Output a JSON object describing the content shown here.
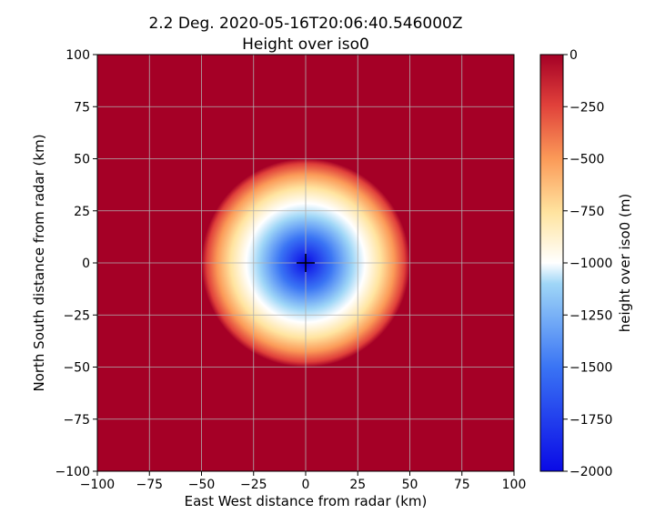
{
  "chart_data": {
    "type": "heatmap",
    "title": "2.2 Deg. 2020-05-16T20:06:40.546000Z",
    "subtitle": "Height over iso0",
    "xlabel": "East West distance from radar (km)",
    "ylabel": "North South distance from radar (km)",
    "xlim": [
      -100,
      100
    ],
    "ylim": [
      -100,
      100
    ],
    "x_ticks": [
      -100,
      -75,
      -50,
      -25,
      0,
      25,
      50,
      75,
      100
    ],
    "y_ticks": [
      -100,
      -75,
      -50,
      -25,
      0,
      25,
      50,
      75,
      100
    ],
    "x_tick_labels": [
      "−100",
      "−75",
      "−50",
      "−25",
      "0",
      "25",
      "50",
      "75",
      "100"
    ],
    "y_tick_labels": [
      "−100",
      "−75",
      "−50",
      "−25",
      "0",
      "25",
      "50",
      "75",
      "100"
    ],
    "grid": true,
    "field": {
      "description_of_values": "radially symmetric field centred on radar",
      "center": [
        0,
        0
      ],
      "value_at_center": -2000,
      "value_at_edge": 0,
      "radius_of_zero_km": 50
    },
    "colorbar": {
      "label": "height over iso0 (m)",
      "colormap": "RdYlBu-like (blue at minimum, red at maximum)",
      "vmin": -2000,
      "vmax": 0,
      "ticks": [
        0,
        -250,
        -500,
        -750,
        -1000,
        -1250,
        -1500,
        -1750,
        -2000
      ],
      "tick_labels": [
        "0",
        "−250",
        "−500",
        "−750",
        "−1000",
        "−1250",
        "−1500",
        "−1750",
        "−2000"
      ]
    },
    "marker": {
      "shape": "plus",
      "at": [
        0,
        0
      ]
    }
  }
}
